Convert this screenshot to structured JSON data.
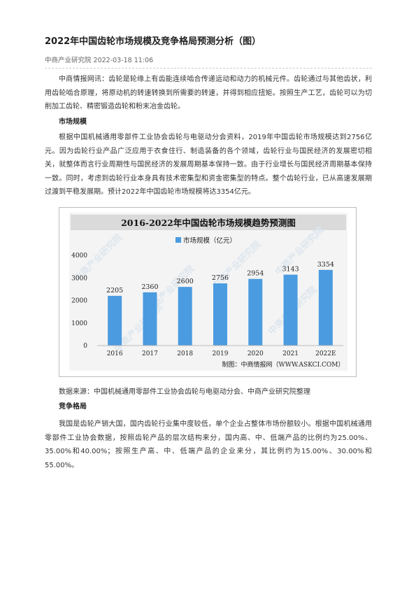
{
  "article": {
    "title": "2022年中国齿轮市场规模及竞争格局预测分析（图）",
    "meta": "中商产业研究院 2022-03-18 11:06",
    "intro": "中商情报网讯：齿轮是轮缘上有齿能连续啮合传递运动和动力的机械元件。齿轮通过与其他齿状，利用齿轮啮合原理，将原动机的转速转换到所需要的转速，并得到相应扭矩。按照生产工艺，齿轮可以为切削加工齿轮、精密锻造齿轮和粉末冶金齿轮。",
    "section1_heading": "市场规模",
    "section1_para": "根据中国机械通用零部件工业协会齿轮与电驱动分会资料，2019年中国齿轮市场规模达到2756亿元。因为齿轮行业产品广泛应用于衣食住行、制造装备的各个领域，齿轮行业与国民经济的发展密切相关，就整体而言行业周期性与国民经济的发展周期基本保持一致。由于行业增长与国民经济周期基本保持一致。同时，考虑到齿轮行业本身具有技术密集型和资金密集型的特点。整个齿轮行业，已从高速发展期过渡到平稳发展期。预计2022年中国齿轮市场规模将达3354亿元。",
    "source": "数据来源：中国机械通用零部件工业协会齿轮与电驱动分会、中商产业研究院整理",
    "section2_heading": "竞争格局",
    "section2_para": "我国是齿轮产销大国，国内齿轮行业集中度较低，单个企业占整体市场份额较小。根据中国机械通用零部件工业协会数据，按照齿轮产品的层次结构来分，国内高、中、低端产品的比例约为25.00%、35.00%和40.00%；按照生产高、中、低端产品的企业来分，其比例约为15.00%、30.00%和55.00%。"
  },
  "chart_data": {
    "type": "bar",
    "title": "2016-2022年中国齿轮市场规模趋势预测图",
    "categories": [
      "2016",
      "2017",
      "2018",
      "2019",
      "2020",
      "2021",
      "2022E"
    ],
    "series": [
      {
        "name": "市场规模（亿元）",
        "values": [
          2205,
          2360,
          2600,
          2756,
          2954,
          3143,
          3354
        ]
      }
    ],
    "data_labels": [
      "2205",
      "2360",
      "2600",
      "2756",
      "2954",
      "3143",
      "3354"
    ],
    "yticks": [
      "0",
      "1000",
      "2000",
      "3000",
      "4000"
    ],
    "ylim": [
      0,
      4000
    ],
    "legend_position": "top",
    "grid": false,
    "credit": "制图：中商情报网（WWW.ASKCI.COM）",
    "watermark": "中商产业研究院",
    "bar_color": "#4a9be0",
    "title_bar_color": "#dadada"
  }
}
